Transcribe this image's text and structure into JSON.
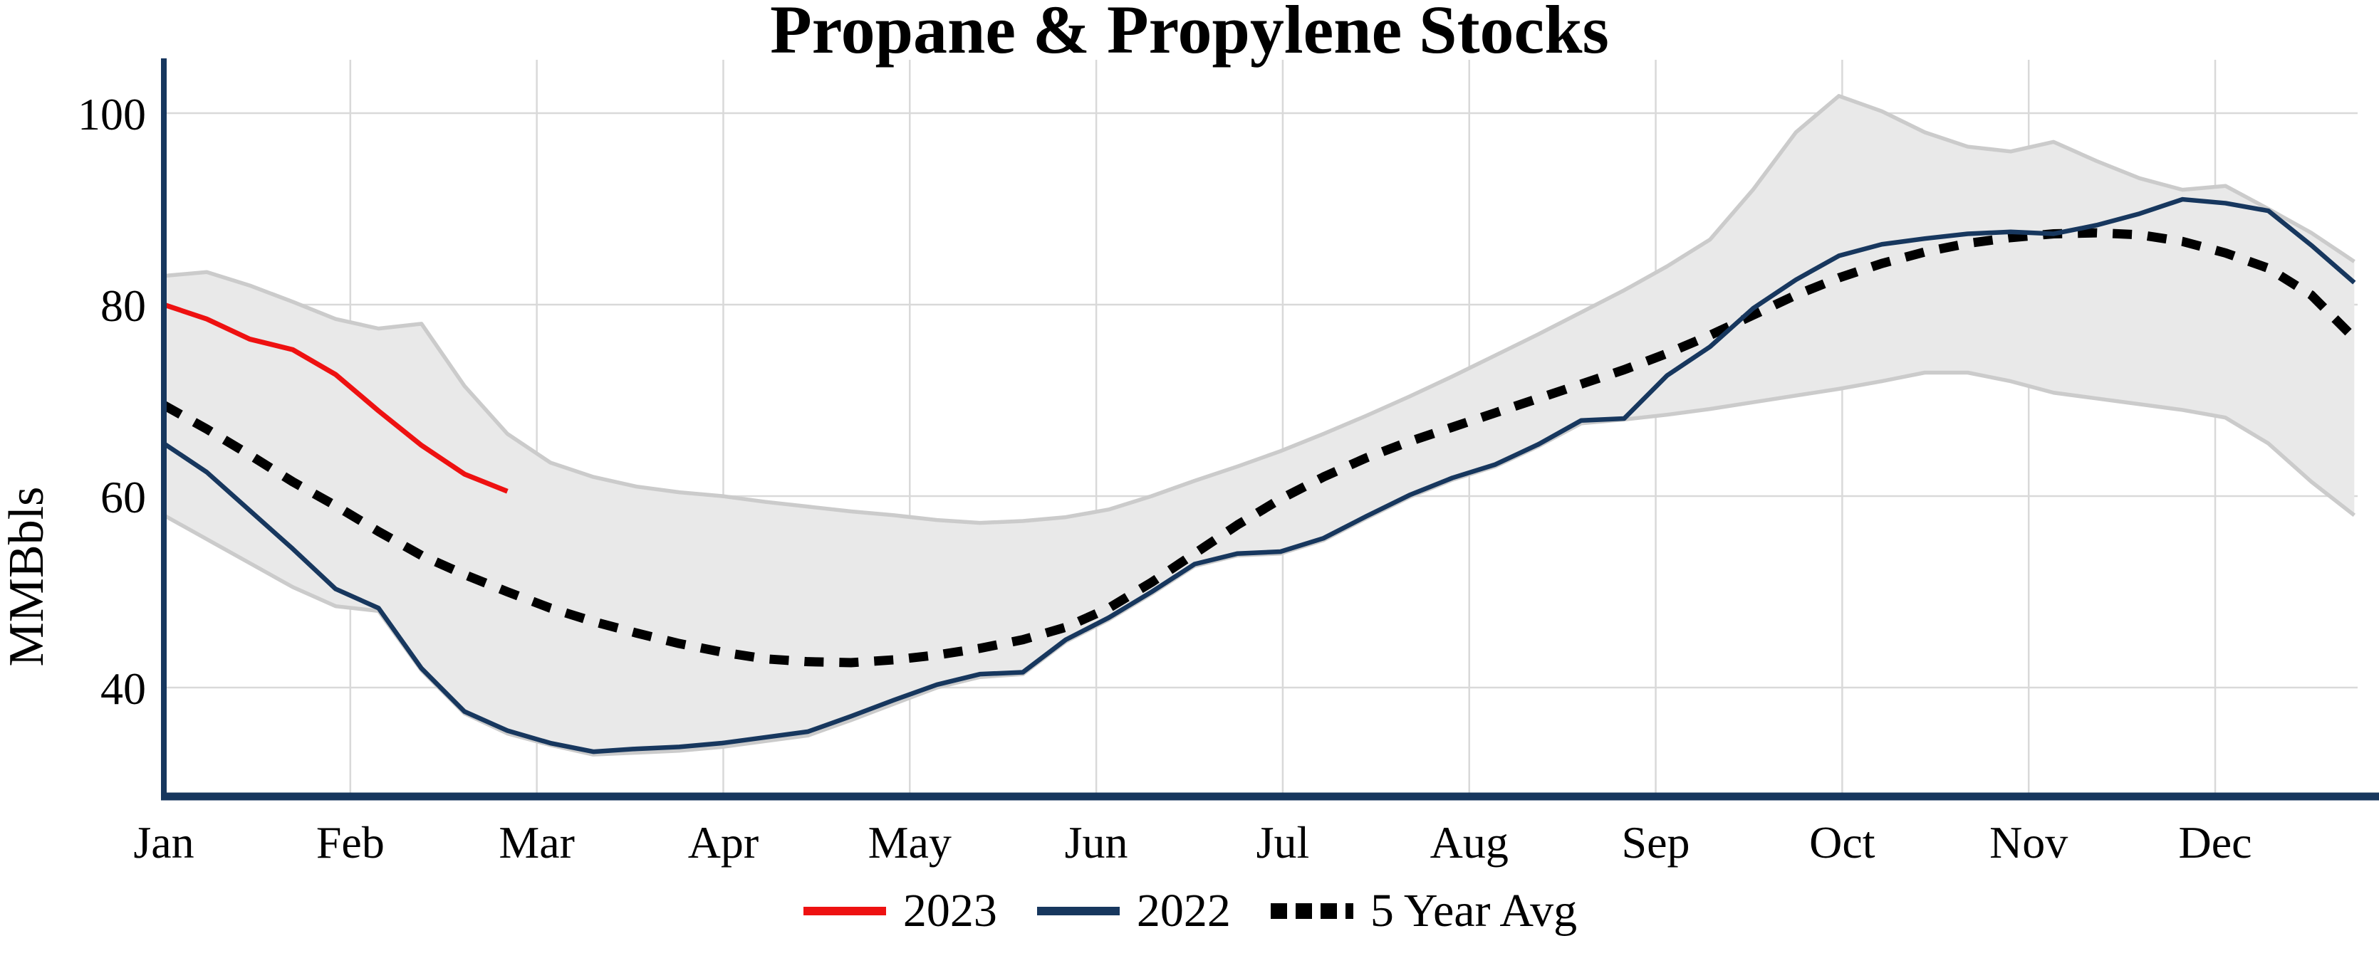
{
  "title": "Propane & Propylene Stocks",
  "y_axis": {
    "label": "MMBbls",
    "ticks": [
      40,
      60,
      80,
      100
    ]
  },
  "x_axis": {
    "months": [
      "Jan",
      "Feb",
      "Mar",
      "Apr",
      "May",
      "Jun",
      "Jul",
      "Aug",
      "Sep",
      "Oct",
      "Nov",
      "Dec"
    ]
  },
  "legend": {
    "items": [
      {
        "label": "2023",
        "color": "#ee1111",
        "style": "solid"
      },
      {
        "label": "2022",
        "color": "#17375e",
        "style": "solid"
      },
      {
        "label": "5 Year Avg",
        "color": "#000000",
        "style": "dashed"
      }
    ]
  },
  "colors": {
    "series_2023": "#ee1111",
    "series_2022": "#17375e",
    "series_avg": "#000000",
    "band_fill": "#e9e9e9",
    "band_edge": "#cbcbcb",
    "grid": "#d9d9d9",
    "axis": "#17375e",
    "text": "#000000"
  },
  "chart_data": {
    "type": "line",
    "title": "Propane & Propylene Stocks",
    "ylabel": "MMBbls",
    "x_unit": "weeks from Jan 1",
    "ylim": [
      28.6,
      105.6
    ],
    "y_ticks": [
      40,
      60,
      80,
      100
    ],
    "grid": true,
    "legend_position": "bottom",
    "series": [
      {
        "name": "2023",
        "style": "solid",
        "color": "#ee1111",
        "width": 7,
        "values": [
          80.0,
          78.5,
          76.4,
          75.3,
          72.7,
          68.9,
          65.3,
          62.3,
          60.5
        ]
      },
      {
        "name": "2022",
        "style": "solid",
        "color": "#17375e",
        "width": 6.5,
        "values": [
          65.5,
          62.5,
          58.5,
          54.5,
          50.3,
          48.3,
          42.0,
          37.5,
          35.5,
          34.2,
          33.3,
          33.6,
          33.8,
          34.2,
          34.8,
          35.4,
          37.0,
          38.7,
          40.3,
          41.4,
          41.6,
          45.0,
          47.3,
          50.0,
          52.9,
          54.0,
          54.2,
          55.6,
          57.9,
          60.1,
          61.9,
          63.3,
          65.4,
          67.9,
          68.1,
          72.6,
          75.6,
          79.6,
          82.6,
          85.1,
          86.3,
          86.9,
          87.4,
          87.6,
          87.4,
          88.3,
          89.5,
          91.0,
          90.6,
          89.8,
          86.2,
          82.3
        ]
      },
      {
        "name": "5 Year Avg",
        "style": "dashed",
        "color": "#000000",
        "width": 13,
        "values": [
          69.5,
          67.0,
          64.3,
          61.5,
          59.0,
          56.3,
          53.8,
          51.8,
          50.0,
          48.3,
          46.9,
          45.7,
          44.6,
          43.7,
          43.0,
          42.7,
          42.6,
          42.9,
          43.4,
          44.1,
          45.0,
          46.3,
          48.3,
          51.0,
          54.0,
          57.0,
          59.7,
          62.0,
          64.0,
          65.7,
          67.2,
          68.7,
          70.2,
          71.7,
          73.2,
          74.9,
          76.8,
          78.9,
          81.0,
          82.8,
          84.3,
          85.5,
          86.4,
          87.0,
          87.4,
          87.5,
          87.3,
          86.6,
          85.4,
          83.8,
          81.0,
          76.5
        ]
      }
    ],
    "band": {
      "name": "5 Year Range",
      "fill": "#e9e9e9",
      "edge": "#cbcbcb",
      "top": [
        83.0,
        83.4,
        82.0,
        80.3,
        78.5,
        77.5,
        78.0,
        71.5,
        66.5,
        63.5,
        62.0,
        61.0,
        60.4,
        60.0,
        59.4,
        58.9,
        58.4,
        58.0,
        57.5,
        57.2,
        57.4,
        57.8,
        58.6,
        60.0,
        61.6,
        63.1,
        64.7,
        66.5,
        68.4,
        70.4,
        72.5,
        74.7,
        76.9,
        79.2,
        81.5,
        84.0,
        86.8,
        92.0,
        98.0,
        101.8,
        100.2,
        98.0,
        96.5,
        96.0,
        97.0,
        95.0,
        93.2,
        92.0,
        92.4,
        90.0,
        87.5,
        84.5
      ],
      "bottom": [
        58.0,
        55.5,
        53.0,
        50.5,
        48.5,
        48.0,
        41.8,
        37.3,
        35.2,
        34.0,
        33.0,
        33.2,
        33.4,
        33.8,
        34.4,
        35.0,
        36.6,
        38.3,
        40.0,
        41.1,
        41.4,
        44.8,
        47.1,
        49.8,
        52.7,
        53.8,
        54.0,
        55.4,
        57.7,
        59.9,
        61.7,
        63.1,
        65.2,
        67.6,
        68.0,
        68.5,
        69.1,
        69.8,
        70.5,
        71.2,
        72.0,
        72.9,
        72.9,
        72.0,
        70.8,
        70.2,
        69.6,
        69.0,
        68.2,
        65.5,
        61.5,
        58.0
      ]
    }
  }
}
